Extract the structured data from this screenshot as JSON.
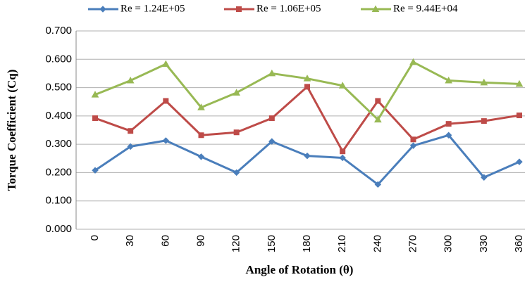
{
  "chart_data": {
    "type": "line",
    "x_label": "Angle of Rotation (θ)",
    "y_label": "Torque Coefficient (Cq)",
    "categories": [
      "0",
      "30",
      "60",
      "90",
      "120",
      "150",
      "180",
      "210",
      "240",
      "270",
      "300",
      "330",
      "360"
    ],
    "series": [
      {
        "name": "Re = 1.24E+05",
        "color": "#4a7ebb",
        "marker": "diamond",
        "values": [
          0.208,
          0.292,
          0.313,
          0.256,
          0.2,
          0.31,
          0.259,
          0.252,
          0.158,
          0.295,
          0.332,
          0.183,
          0.238
        ]
      },
      {
        "name": "Re = 1.06E+05",
        "color": "#be4b48",
        "marker": "square",
        "values": [
          0.392,
          0.347,
          0.453,
          0.332,
          0.342,
          0.392,
          0.503,
          0.275,
          0.453,
          0.317,
          0.372,
          0.382,
          0.402
        ]
      },
      {
        "name": "Re = 9.44E+04",
        "color": "#98b954",
        "marker": "triangle",
        "values": [
          0.475,
          0.525,
          0.583,
          0.43,
          0.482,
          0.55,
          0.532,
          0.507,
          0.387,
          0.59,
          0.525,
          0.518,
          0.513
        ]
      }
    ],
    "ylim": [
      0,
      0.7
    ],
    "yticks": [
      {
        "value": 0,
        "label": "0.000"
      },
      {
        "value": 0.1,
        "label": "0.100"
      },
      {
        "value": 0.2,
        "label": "0.200"
      },
      {
        "value": 0.3,
        "label": "0.300"
      },
      {
        "value": 0.4,
        "label": "0.400"
      },
      {
        "value": 0.5,
        "label": "0.500"
      },
      {
        "value": 0.6,
        "label": "0.600"
      },
      {
        "value": 0.7,
        "label": "0.700"
      }
    ],
    "grid": true,
    "legend": "top"
  }
}
